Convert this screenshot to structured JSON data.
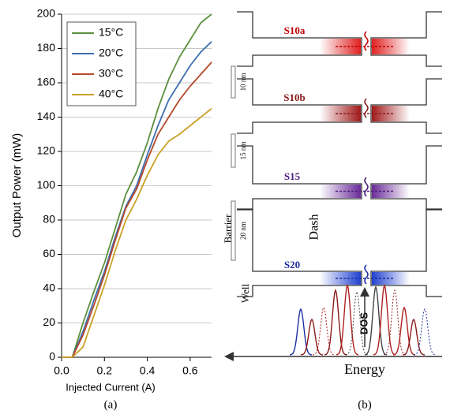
{
  "chart_data": {
    "type": "line",
    "x_label": "Injected Current (A)",
    "y_label": "Output Power (mW)",
    "x": [
      0,
      0.05,
      0.1,
      0.15,
      0.2,
      0.25,
      0.3,
      0.35,
      0.4,
      0.45,
      0.5,
      0.55,
      0.6,
      0.65,
      0.7
    ],
    "series": [
      {
        "name": "15°C",
        "color": "#5b8f3d",
        "values": [
          0,
          0,
          20,
          38,
          55,
          75,
          95,
          108,
          125,
          145,
          162,
          175,
          185,
          195,
          200
        ]
      },
      {
        "name": "20°C",
        "color": "#3f6fb0",
        "values": [
          0,
          0,
          15,
          33,
          50,
          70,
          88,
          100,
          118,
          135,
          150,
          160,
          170,
          178,
          184
        ]
      },
      {
        "name": "30°C",
        "color": "#b5482a",
        "values": [
          0,
          0,
          13,
          30,
          48,
          68,
          87,
          98,
          115,
          130,
          140,
          150,
          158,
          165,
          172
        ]
      },
      {
        "name": "40°C",
        "color": "#c9a227",
        "values": [
          0,
          0,
          6,
          24,
          42,
          62,
          80,
          92,
          106,
          118,
          126,
          130,
          135,
          140,
          145
        ]
      }
    ],
    "xlim": [
      0,
      0.7
    ],
    "xticks": [
      {
        "value": 0,
        "label": "0.0"
      },
      0.2,
      0.4,
      0.6
    ],
    "ylim": [
      0,
      200
    ],
    "yticks": [
      0,
      20,
      40,
      60,
      80,
      100,
      120,
      140,
      160,
      180,
      200
    ],
    "grid": true,
    "legend": "upper left"
  },
  "diagram": {
    "states": [
      "S10a",
      "S10b",
      "S15",
      "S20"
    ],
    "thicknesses": [
      "10 nm",
      "15 nm",
      "20 nm"
    ],
    "barrier": "Barrier",
    "dash": "Dash",
    "well": "Well",
    "dos": "DOS",
    "energy": "Energy"
  },
  "captions": [
    "(a)",
    "(b)"
  ]
}
